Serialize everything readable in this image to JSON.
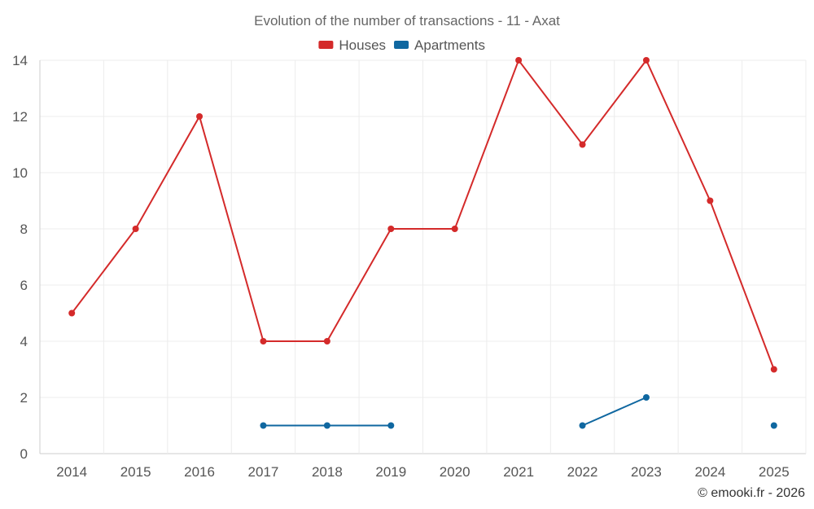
{
  "chart_data": {
    "type": "line",
    "title": "Evolution of the number of transactions - 11 - Axat",
    "categories": [
      "2014",
      "2015",
      "2016",
      "2017",
      "2018",
      "2019",
      "2020",
      "2021",
      "2022",
      "2023",
      "2024",
      "2025"
    ],
    "ylim": [
      0,
      14
    ],
    "yticks": [
      0,
      2,
      4,
      6,
      8,
      10,
      12,
      14
    ],
    "grid": true,
    "legend_position": "top-center",
    "series": [
      {
        "name": "Houses",
        "color": "#d42a2a",
        "values": [
          5,
          8,
          12,
          4,
          4,
          8,
          8,
          14,
          11,
          14,
          9,
          3
        ]
      },
      {
        "name": "Apartments",
        "color": "#0f67a0",
        "values": [
          null,
          null,
          null,
          1,
          1,
          1,
          null,
          null,
          1,
          2,
          null,
          1
        ]
      }
    ],
    "credit": "© emooki.fr - 2026"
  }
}
